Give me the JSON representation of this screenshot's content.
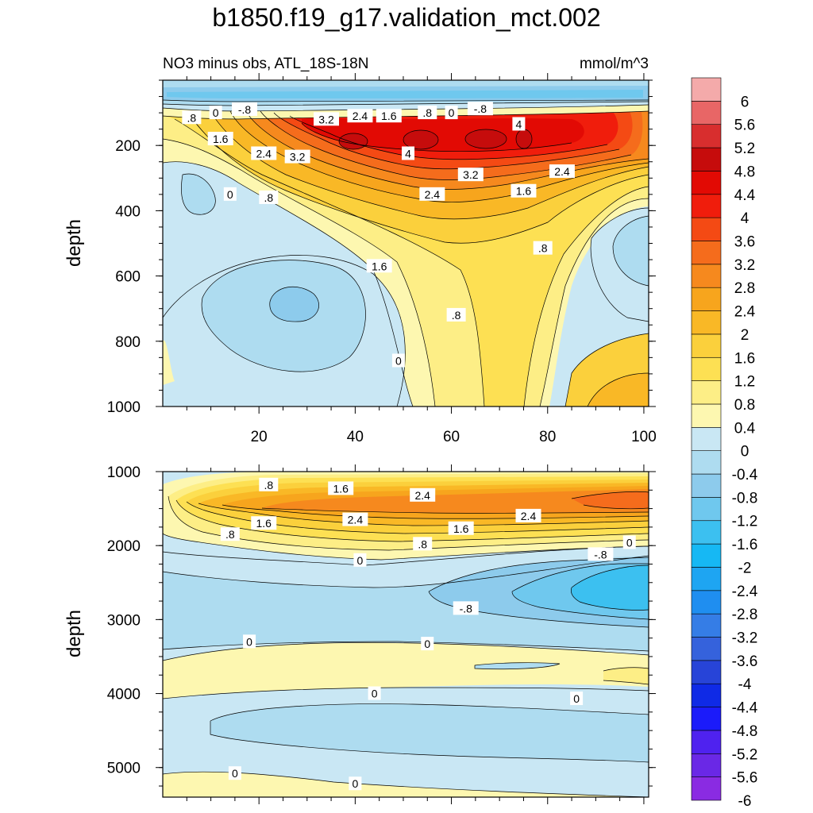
{
  "title": "b1850.f19_g17.validation_mct.002",
  "colors": {
    "levels": [
      "#8a2be2",
      "#6a28e6",
      "#4f22ef",
      "#1b1bfa",
      "#0f2ae6",
      "#2744d8",
      "#3562dc",
      "#357de6",
      "#1f8ef0",
      "#1ea5f2",
      "#16b8f4",
      "#3cc0f0",
      "#6fc8ee",
      "#8dcbec",
      "#aedcf0",
      "#c9e7f4",
      "#fdf7b0",
      "#fdee86",
      "#fde053",
      "#fbd03c",
      "#f9b826",
      "#f7a51d",
      "#f6891e",
      "#f56c1c",
      "#f44a14",
      "#f01d0c",
      "#e20a04",
      "#c60c0c",
      "#d82e2e",
      "#e86666",
      "#f4aaaa"
    ]
  },
  "chart_data": {
    "type": "heatmap",
    "title": "b1850.f19_g17.validation_mct.002",
    "units": "mmol/m^3",
    "colorbar": {
      "levels": [
        -6,
        -5.6,
        -5.2,
        -4.8,
        -4.4,
        -4,
        -3.6,
        -3.2,
        -2.8,
        -2.4,
        -2,
        -1.6,
        -1.2,
        -0.8,
        -0.4,
        0,
        0.4,
        0.8,
        1.2,
        1.6,
        2,
        2.4,
        2.8,
        3.2,
        3.6,
        4,
        4.4,
        4.8,
        5.2,
        5.6,
        6
      ],
      "labels": [
        "6",
        "5.6",
        "5.2",
        "4.8",
        "4.4",
        "4",
        "3.6",
        "3.2",
        "2.8",
        "2.4",
        "2",
        "1.6",
        "1.2",
        "0.8",
        "0.4",
        "0",
        "-0.4",
        "-0.8",
        "-1.2",
        "-1.6",
        "-2",
        "-2.4",
        "-2.8",
        "-3.2",
        "-3.6",
        "-4",
        "-4.4",
        "-4.8",
        "-5.2",
        "-5.6",
        "-6"
      ]
    },
    "panels": [
      {
        "subtitle": "NO3 minus obs, ATL_18S-18N",
        "units_label": "mmol/m^3",
        "ylabel": "depth",
        "ylim": [
          0,
          1000
        ],
        "xlim": [
          0,
          101
        ],
        "x_ticks": [
          "20",
          "40",
          "60",
          "80",
          "100"
        ],
        "x_tick_values": [
          20,
          40,
          60,
          80,
          100
        ],
        "y_ticks": [
          "200",
          "400",
          "600",
          "800",
          "1000"
        ],
        "y_tick_values": [
          200,
          400,
          600,
          800,
          1000
        ],
        "contour_labels": [
          {
            "text": ".8",
            "x": 6,
            "y": 115
          },
          {
            "text": "0",
            "x": 11,
            "y": 100
          },
          {
            "text": "-.8",
            "x": 17,
            "y": 90
          },
          {
            "text": "3.2",
            "x": 34,
            "y": 120
          },
          {
            "text": "2.4",
            "x": 41,
            "y": 110
          },
          {
            "text": "1.6",
            "x": 47,
            "y": 110
          },
          {
            "text": ".8",
            "x": 55,
            "y": 100
          },
          {
            "text": "0",
            "x": 60,
            "y": 100
          },
          {
            "text": "-.8",
            "x": 66,
            "y": 88
          },
          {
            "text": "4",
            "x": 74,
            "y": 135
          },
          {
            "text": "1.6",
            "x": 12,
            "y": 180
          },
          {
            "text": "2.4",
            "x": 21,
            "y": 225
          },
          {
            "text": "3.2",
            "x": 28,
            "y": 235
          },
          {
            "text": "4",
            "x": 51,
            "y": 225
          },
          {
            "text": "3.2",
            "x": 64,
            "y": 290
          },
          {
            "text": "2.4",
            "x": 83,
            "y": 280
          },
          {
            "text": "0",
            "x": 14,
            "y": 350
          },
          {
            "text": ".8",
            "x": 22,
            "y": 360
          },
          {
            "text": "2.4",
            "x": 56,
            "y": 350
          },
          {
            "text": "1.6",
            "x": 75,
            "y": 340
          },
          {
            "text": ".8",
            "x": 79,
            "y": 515
          },
          {
            "text": "1.6",
            "x": 45,
            "y": 570
          },
          {
            "text": ".8",
            "x": 61,
            "y": 720
          },
          {
            "text": "0",
            "x": 49,
            "y": 860
          }
        ]
      },
      {
        "subtitle": "",
        "ylabel": "depth",
        "ylim": [
          1000,
          5400
        ],
        "xlim": [
          0,
          101
        ],
        "y_ticks": [
          "1000",
          "2000",
          "3000",
          "4000",
          "5000"
        ],
        "y_tick_values": [
          1000,
          2000,
          3000,
          4000,
          5000
        ],
        "contour_labels": [
          {
            "text": ".8",
            "x": 22,
            "y": 1180
          },
          {
            "text": "1.6",
            "x": 37,
            "y": 1230
          },
          {
            "text": "2.4",
            "x": 54,
            "y": 1320
          },
          {
            "text": "2.4",
            "x": 40,
            "y": 1650
          },
          {
            "text": "1.6",
            "x": 21,
            "y": 1700
          },
          {
            "text": ".8",
            "x": 14,
            "y": 1850
          },
          {
            "text": "1.6",
            "x": 62,
            "y": 1770
          },
          {
            "text": "2.4",
            "x": 76,
            "y": 1600
          },
          {
            "text": ".8",
            "x": 54,
            "y": 1980
          },
          {
            "text": "0",
            "x": 41,
            "y": 2200
          },
          {
            "text": "0",
            "x": 97,
            "y": 1960
          },
          {
            "text": "-.8",
            "x": 91,
            "y": 2120
          },
          {
            "text": "-.8",
            "x": 63,
            "y": 2850
          },
          {
            "text": "0",
            "x": 18,
            "y": 3300
          },
          {
            "text": "0",
            "x": 55,
            "y": 3330
          },
          {
            "text": "0",
            "x": 44,
            "y": 4000
          },
          {
            "text": "0",
            "x": 86,
            "y": 4070
          },
          {
            "text": "0",
            "x": 15,
            "y": 5080
          },
          {
            "text": "0",
            "x": 40,
            "y": 5220
          }
        ]
      }
    ]
  }
}
